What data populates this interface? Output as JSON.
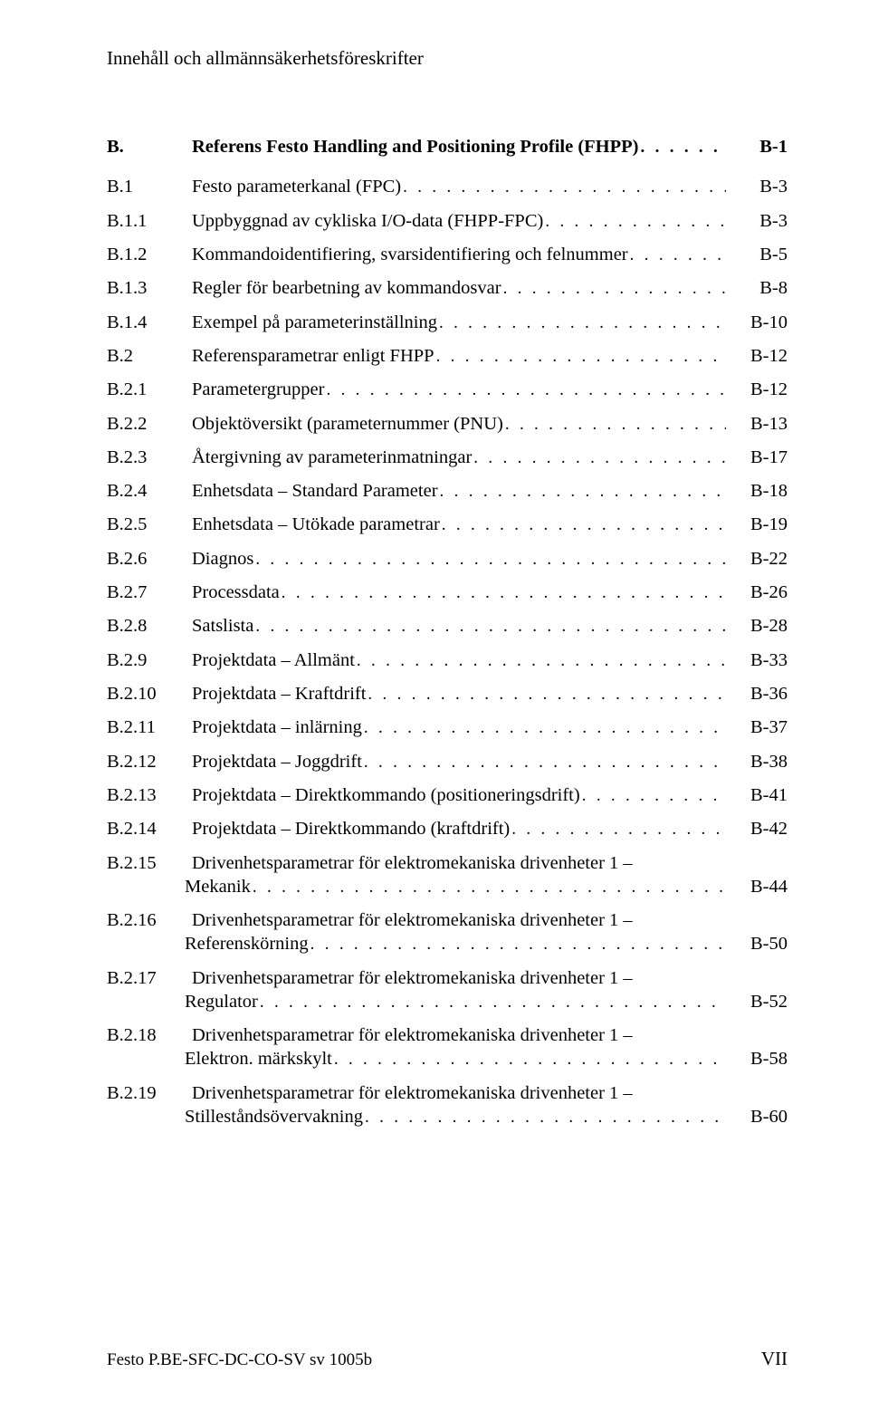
{
  "header": "Innehåll och allmännsäkerhetsföreskrifter",
  "toc": [
    {
      "num": "B.",
      "title": "Referens Festo Handling and Positioning Profile (FHPP)",
      "page": "B-1",
      "bold": true,
      "level": 0
    },
    {
      "num": "B.1",
      "title": "Festo parameterkanal (FPC)",
      "page": "B-3",
      "level": 1
    },
    {
      "num": "B.1.1",
      "title": "Uppbyggnad av cykliska I/O-data (FHPP-FPC)",
      "page": "B-3",
      "level": 2
    },
    {
      "num": "B.1.2",
      "title": "Kommandoidentifiering, svarsidentifiering och felnummer",
      "page": "B-5",
      "level": 2
    },
    {
      "num": "B.1.3",
      "title": "Regler för bearbetning av kommandosvar",
      "page": "B-8",
      "level": 2
    },
    {
      "num": "B.1.4",
      "title": "Exempel på parameterinställning",
      "page": "B-10",
      "level": 2
    },
    {
      "num": "B.2",
      "title": "Referensparametrar enligt FHPP",
      "page": "B-12",
      "level": 1
    },
    {
      "num": "B.2.1",
      "title": "Parametergrupper",
      "page": "B-12",
      "level": 2
    },
    {
      "num": "B.2.2",
      "title": "Objektöversikt (parameternummer (PNU)",
      "page": "B-13",
      "level": 2
    },
    {
      "num": "B.2.3",
      "title": "Återgivning av parameterinmatningar",
      "page": "B-17",
      "level": 2
    },
    {
      "num": "B.2.4",
      "title": "Enhetsdata – Standard Parameter",
      "page": "B-18",
      "level": 2
    },
    {
      "num": "B.2.5",
      "title": "Enhetsdata – Utökade parametrar",
      "page": "B-19",
      "level": 2
    },
    {
      "num": "B.2.6",
      "title": "Diagnos",
      "page": "B-22",
      "level": 2
    },
    {
      "num": "B.2.7",
      "title": "Processdata",
      "page": "B-26",
      "level": 2
    },
    {
      "num": "B.2.8",
      "title": "Satslista",
      "page": "B-28",
      "level": 2
    },
    {
      "num": "B.2.9",
      "title": "Projektdata – Allmänt",
      "page": "B-33",
      "level": 2
    },
    {
      "num": "B.2.10",
      "title": "Projektdata – Kraftdrift",
      "page": "B-36",
      "level": 2
    },
    {
      "num": "B.2.11",
      "title": "Projektdata – inlärning",
      "page": "B-37",
      "level": 2
    },
    {
      "num": "B.2.12",
      "title": "Projektdata – Joggdrift",
      "page": "B-38",
      "level": 2
    },
    {
      "num": "B.2.13",
      "title": "Projektdata – Direktkommando (positioneringsdrift)",
      "page": "B-41",
      "level": 2
    },
    {
      "num": "B.2.14",
      "title": "Projektdata – Direktkommando (kraftdrift)",
      "page": "B-42",
      "level": 2
    },
    {
      "num": "B.2.15",
      "title_a": "Drivenhetsparametrar för elektromekaniska drivenheter 1 –",
      "title_b": "Mekanik",
      "page": "B-44",
      "level": 2,
      "multi": true
    },
    {
      "num": "B.2.16",
      "title_a": "Drivenhetsparametrar för elektromekaniska drivenheter 1 –",
      "title_b": "Referenskörning",
      "page": "B-50",
      "level": 2,
      "multi": true
    },
    {
      "num": "B.2.17",
      "title_a": "Drivenhetsparametrar för elektromekaniska drivenheter 1 –",
      "title_b": "Regulator",
      "page": "B-52",
      "level": 2,
      "multi": true
    },
    {
      "num": "B.2.18",
      "title_a": "Drivenhetsparametrar för elektromekaniska drivenheter 1 –",
      "title_b": "Elektron. märkskylt",
      "page": "B-58",
      "level": 2,
      "multi": true
    },
    {
      "num": "B.2.19",
      "title_a": "Drivenhetsparametrar för elektromekaniska drivenheter 1 –",
      "title_b": "Stilleståndsövervakning",
      "page": "B-60",
      "level": 2,
      "multi": true
    }
  ],
  "footer_left": "Festo P.BE-SFC-DC-CO-SV sv 1005b",
  "footer_right": "VII"
}
